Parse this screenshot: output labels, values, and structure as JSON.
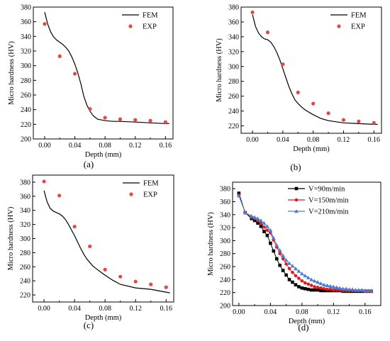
{
  "figure": {
    "background": "#ffffff"
  },
  "chart_data": [
    {
      "id": "a",
      "type": "line",
      "panel_label": "(a)",
      "xlabel": "Depth (mm)",
      "ylabel": "Micro hardness (HV)",
      "xlim": [
        -0.015,
        0.17
      ],
      "ylim": [
        200,
        380
      ],
      "xticks": [
        0.0,
        0.04,
        0.08,
        0.12,
        0.16
      ],
      "xtick_labels": [
        "0.00",
        "0.04",
        "0.08",
        "0.12",
        "0.16"
      ],
      "yticks": [
        200,
        220,
        240,
        260,
        280,
        300,
        320,
        340,
        360,
        380
      ],
      "ytick_labels": [
        "200",
        "220",
        "240",
        "260",
        "280",
        "300",
        "320",
        "340",
        "360",
        "380"
      ],
      "legend": {
        "position": "top-right",
        "entries": [
          "FEM",
          "EXP"
        ]
      },
      "series": [
        {
          "name": "FEM",
          "kind": "line",
          "color": "#000000",
          "x": [
            0.0,
            0.004,
            0.008,
            0.012,
            0.016,
            0.02,
            0.024,
            0.028,
            0.032,
            0.036,
            0.04,
            0.044,
            0.048,
            0.052,
            0.056,
            0.06,
            0.064,
            0.07,
            0.08,
            0.09,
            0.1,
            0.12,
            0.14,
            0.16,
            0.165
          ],
          "y": [
            373,
            357,
            346,
            339,
            335,
            332,
            329,
            325,
            320,
            312,
            302,
            290,
            275,
            258,
            246,
            238,
            232,
            227,
            225,
            224,
            224,
            223,
            222,
            221,
            221
          ]
        },
        {
          "name": "EXP",
          "kind": "scatter",
          "color": "#e84545",
          "x": [
            0.0,
            0.02,
            0.04,
            0.06,
            0.08,
            0.1,
            0.12,
            0.14,
            0.16
          ],
          "y": [
            357,
            313,
            289,
            241,
            229,
            227,
            226,
            225,
            223
          ]
        }
      ]
    },
    {
      "id": "b",
      "type": "line",
      "panel_label": "(b)",
      "xlabel": "Depth (mm)",
      "ylabel": "Micro hardness (HV)",
      "xlim": [
        -0.015,
        0.17
      ],
      "ylim": [
        210,
        380
      ],
      "xticks": [
        0.0,
        0.04,
        0.08,
        0.12,
        0.16
      ],
      "xtick_labels": [
        "0.00",
        "0.04",
        "0.08",
        "0.12",
        "0.16"
      ],
      "yticks": [
        220,
        240,
        260,
        280,
        300,
        320,
        340,
        360,
        380
      ],
      "ytick_labels": [
        "220",
        "240",
        "260",
        "280",
        "300",
        "320",
        "340",
        "360",
        "380"
      ],
      "legend": {
        "position": "top-right",
        "entries": [
          "FEM",
          "EXP"
        ]
      },
      "series": [
        {
          "name": "FEM",
          "kind": "line",
          "color": "#000000",
          "x": [
            0.0,
            0.004,
            0.008,
            0.012,
            0.016,
            0.02,
            0.024,
            0.028,
            0.032,
            0.036,
            0.04,
            0.044,
            0.048,
            0.052,
            0.056,
            0.06,
            0.064,
            0.07,
            0.08,
            0.09,
            0.1,
            0.12,
            0.14,
            0.16,
            0.165
          ],
          "y": [
            370,
            354,
            345,
            340,
            337,
            336,
            333,
            327,
            319,
            309,
            297,
            285,
            273,
            263,
            255,
            250,
            246,
            241,
            235,
            230,
            227,
            224,
            223,
            222,
            222
          ]
        },
        {
          "name": "EXP",
          "kind": "scatter",
          "color": "#e84545",
          "x": [
            0.0,
            0.02,
            0.04,
            0.06,
            0.08,
            0.1,
            0.12,
            0.14,
            0.16
          ],
          "y": [
            373,
            346,
            303,
            265,
            250,
            237,
            228,
            226,
            224
          ]
        }
      ]
    },
    {
      "id": "c",
      "type": "line",
      "panel_label": "(c)",
      "xlabel": "Depth (mm)",
      "ylabel": "Micro hardness (HV)",
      "xlim": [
        -0.015,
        0.17
      ],
      "ylim": [
        210,
        390
      ],
      "xticks": [
        0.0,
        0.04,
        0.08,
        0.12,
        0.16
      ],
      "xtick_labels": [
        "0.00",
        "0.04",
        "0.08",
        "0.12",
        "0.16"
      ],
      "yticks": [
        220,
        240,
        260,
        280,
        300,
        320,
        340,
        360,
        380
      ],
      "ytick_labels": [
        "220",
        "240",
        "260",
        "280",
        "300",
        "320",
        "340",
        "360",
        "380"
      ],
      "legend": {
        "position": "top-right",
        "entries": [
          "FEM",
          "EXP"
        ]
      },
      "series": [
        {
          "name": "FEM",
          "kind": "line",
          "color": "#000000",
          "x": [
            0.0,
            0.004,
            0.008,
            0.012,
            0.016,
            0.02,
            0.024,
            0.028,
            0.032,
            0.036,
            0.04,
            0.044,
            0.048,
            0.052,
            0.056,
            0.06,
            0.064,
            0.07,
            0.08,
            0.09,
            0.1,
            0.12,
            0.14,
            0.16,
            0.165
          ],
          "y": [
            368,
            352,
            343,
            339,
            337,
            335,
            332,
            327,
            320,
            312,
            304,
            295,
            286,
            278,
            271,
            266,
            261,
            256,
            248,
            241,
            235,
            230,
            228,
            224,
            223
          ]
        },
        {
          "name": "EXP",
          "kind": "scatter",
          "color": "#e84545",
          "x": [
            0.0,
            0.02,
            0.04,
            0.06,
            0.08,
            0.1,
            0.12,
            0.14,
            0.16
          ],
          "y": [
            381,
            361,
            317,
            289,
            256,
            246,
            239,
            235,
            231
          ]
        }
      ]
    },
    {
      "id": "d",
      "type": "line",
      "panel_label": "(d)",
      "xlabel": "Depth (mm)",
      "ylabel": "Micro hardness (HV)",
      "xlim": [
        -0.008,
        0.18
      ],
      "ylim": [
        200,
        390
      ],
      "xticks": [
        0.0,
        0.04,
        0.08,
        0.12,
        0.16
      ],
      "xtick_labels": [
        "0.00",
        "0.04",
        "0.08",
        "0.12",
        "0.16"
      ],
      "yticks": [
        200,
        220,
        240,
        260,
        280,
        300,
        320,
        340,
        360,
        380
      ],
      "ytick_labels": [
        "200",
        "220",
        "240",
        "260",
        "280",
        "300",
        "320",
        "340",
        "360",
        "380"
      ],
      "legend": {
        "position": "top-right",
        "entries": [
          "V=90m/min",
          "V=150m/min",
          "V=210m/min"
        ]
      },
      "series": [
        {
          "name": "V=90m/min",
          "kind": "line-marker",
          "marker": "square",
          "color": "#000000",
          "x": [
            0.0,
            0.008,
            0.016,
            0.02,
            0.024,
            0.028,
            0.032,
            0.036,
            0.04,
            0.044,
            0.048,
            0.052,
            0.056,
            0.06,
            0.064,
            0.068,
            0.072,
            0.076,
            0.08,
            0.084,
            0.088,
            0.092,
            0.096,
            0.1,
            0.104,
            0.108,
            0.112,
            0.116,
            0.12,
            0.124,
            0.128,
            0.132,
            0.136,
            0.14,
            0.144,
            0.148,
            0.152,
            0.156,
            0.16,
            0.164,
            0.168
          ],
          "y": [
            373,
            343,
            334,
            331,
            327,
            322,
            314,
            308,
            296,
            284,
            272,
            262,
            254,
            247,
            240,
            236,
            232,
            229,
            227,
            226,
            225,
            224,
            224,
            224,
            223,
            223,
            223,
            223,
            223,
            223,
            223,
            222,
            222,
            222,
            222,
            222,
            222,
            222,
            222,
            222,
            222
          ]
        },
        {
          "name": "V=150m/min",
          "kind": "line-marker",
          "marker": "circle",
          "color": "#e01b1b",
          "x": [
            0.0,
            0.008,
            0.016,
            0.02,
            0.024,
            0.028,
            0.032,
            0.036,
            0.04,
            0.044,
            0.048,
            0.052,
            0.056,
            0.06,
            0.064,
            0.068,
            0.072,
            0.076,
            0.08,
            0.084,
            0.088,
            0.092,
            0.096,
            0.1,
            0.104,
            0.108,
            0.112,
            0.116,
            0.12,
            0.124,
            0.128,
            0.132,
            0.136,
            0.14,
            0.144,
            0.148,
            0.152,
            0.156,
            0.16,
            0.164,
            0.168
          ],
          "y": [
            370,
            343,
            336,
            334,
            331,
            327,
            321,
            316,
            312,
            301,
            290,
            280,
            272,
            264,
            257,
            251,
            246,
            242,
            238,
            235,
            233,
            231,
            229,
            228,
            227,
            226,
            225,
            225,
            224,
            224,
            224,
            223,
            223,
            223,
            223,
            223,
            223,
            223,
            222,
            222,
            222
          ]
        },
        {
          "name": "V=210m/min",
          "kind": "line-marker",
          "marker": "triangle",
          "color": "#4a7bd9",
          "x": [
            0.0,
            0.008,
            0.016,
            0.02,
            0.024,
            0.028,
            0.032,
            0.036,
            0.04,
            0.044,
            0.048,
            0.052,
            0.056,
            0.06,
            0.064,
            0.068,
            0.072,
            0.076,
            0.08,
            0.084,
            0.088,
            0.092,
            0.096,
            0.1,
            0.104,
            0.108,
            0.112,
            0.116,
            0.12,
            0.124,
            0.128,
            0.132,
            0.136,
            0.14,
            0.144,
            0.148,
            0.152,
            0.156,
            0.16,
            0.164,
            0.168
          ],
          "y": [
            369,
            343,
            338,
            336,
            334,
            331,
            327,
            322,
            316,
            304,
            293,
            285,
            277,
            270,
            265,
            261,
            257,
            253,
            249,
            246,
            243,
            240,
            238,
            236,
            234,
            232,
            231,
            230,
            229,
            228,
            227,
            226,
            226,
            225,
            225,
            224,
            224,
            224,
            223,
            223,
            223
          ]
        }
      ]
    }
  ]
}
